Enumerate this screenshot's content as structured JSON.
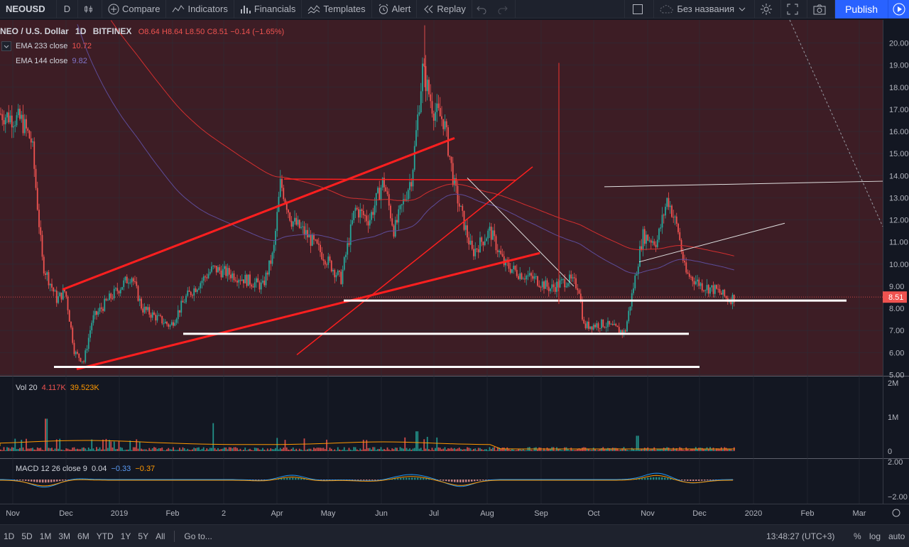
{
  "toolbar": {
    "symbol": "NEOUSD",
    "interval": "D",
    "compare": "Compare",
    "indicators": "Indicators",
    "financials": "Financials",
    "templates": "Templates",
    "alert": "Alert",
    "replay": "Replay",
    "layout_name": "Без названия",
    "publish": "Publish"
  },
  "legend": {
    "title": "NEO / U.S. Dollar",
    "interval": "1D",
    "exchange": "BITFINEX",
    "o": "O8.64",
    "h": "H8.64",
    "l": "L8.50",
    "c": "C8.51",
    "change": "−0.14 (−1.65%)",
    "ema233_label": "EMA 233 close",
    "ema233_value": "10.72",
    "ema144_label": "EMA 144 close",
    "ema144_value": "9.82",
    "vol_label": "Vol 20",
    "vol_value1": "4.117K",
    "vol_value2": "39.523K",
    "macd_label": "MACD 12 26 close 9",
    "macd_v1": "0.04",
    "macd_v2": "−0.33",
    "macd_v3": "−0.37"
  },
  "price_axis": [
    "20.00",
    "19.00",
    "18.00",
    "17.00",
    "16.00",
    "15.00",
    "14.00",
    "13.00",
    "12.00",
    "11.00",
    "10.00",
    "9.00",
    "8.00",
    "7.00",
    "6.00",
    "5.00"
  ],
  "price_tag": "8.51",
  "vol_axis": [
    "2M",
    "1M",
    "0"
  ],
  "macd_axis": [
    "2.00",
    "−2.00"
  ],
  "time_axis": [
    "Nov",
    "Dec",
    "2019",
    "Feb",
    "2",
    "Apr",
    "May",
    "Jun",
    "Jul",
    "Aug",
    "Sep",
    "Oct",
    "Nov",
    "Dec",
    "2020",
    "Feb",
    "Mar"
  ],
  "bottom": {
    "ranges": [
      "1D",
      "5D",
      "1M",
      "3M",
      "6M",
      "YTD",
      "1Y",
      "5Y",
      "All"
    ],
    "goto": "Go to...",
    "time": "13:48:27 (UTC+3)",
    "pct": "%",
    "log": "log",
    "auto": "auto"
  },
  "colors": {
    "up": "#26a69a",
    "down": "#ef5350",
    "bg": "#131722",
    "bg_tint": "#3d1d25",
    "ema233": "#d32f2f",
    "ema144": "#5e4c99"
  },
  "chart_data": {
    "type": "candlestick",
    "ylim": [
      5,
      20.8
    ],
    "close_series": [
      {
        "x": "Nov",
        "y": 16.5
      },
      {
        "x": "mid-Nov",
        "y": 9.0
      },
      {
        "x": "Dec",
        "y": 8.5
      },
      {
        "x": "mid-Dec",
        "y": 5.5
      },
      {
        "x": "2019",
        "y": 8.0
      },
      {
        "x": "mid-Jan",
        "y": 7.2
      },
      {
        "x": "Feb",
        "y": 7.0
      },
      {
        "x": "mid-Feb",
        "y": 9.5
      },
      {
        "x": "Mar",
        "y": 9.0
      },
      {
        "x": "Apr",
        "y": 13.5
      },
      {
        "x": "mid-Apr",
        "y": 11.0
      },
      {
        "x": "May",
        "y": 9.0
      },
      {
        "x": "mid-May",
        "y": 13.0
      },
      {
        "x": "Jun",
        "y": 12.0
      },
      {
        "x": "mid-Jun",
        "y": 18.5
      },
      {
        "x": "Jul",
        "y": 15.0
      },
      {
        "x": "mid-Jul",
        "y": 12.0
      },
      {
        "x": "Aug",
        "y": 11.0
      },
      {
        "x": "Sep",
        "y": 9.0
      },
      {
        "x": "Oct",
        "y": 7.0
      },
      {
        "x": "Nov",
        "y": 11.0
      },
      {
        "x": "mid-Nov",
        "y": 13.0
      },
      {
        "x": "Dec",
        "y": 9.0
      },
      {
        "x": "mid-Dec",
        "y": 8.51
      }
    ],
    "series": [
      {
        "name": "EMA 233 close",
        "last": 10.72
      },
      {
        "name": "EMA 144 close",
        "last": 9.82
      }
    ]
  }
}
